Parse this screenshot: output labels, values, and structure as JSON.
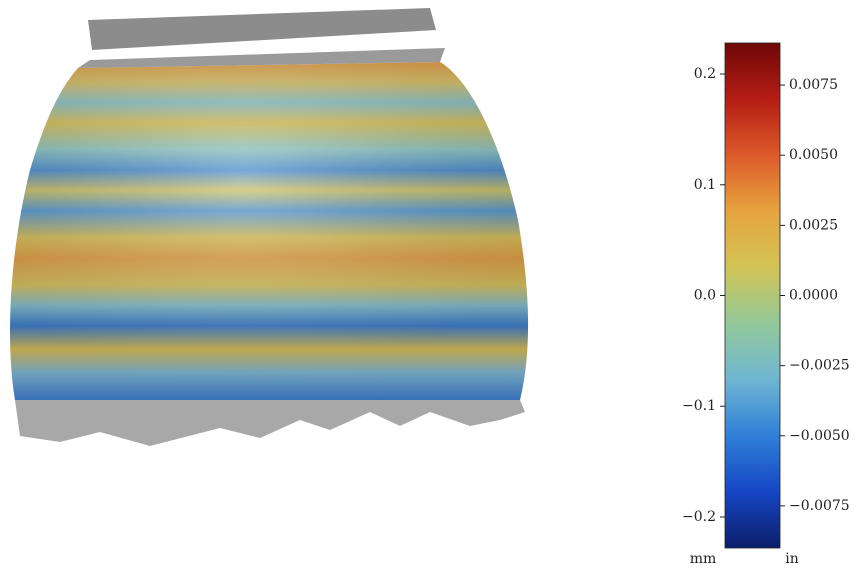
{
  "chart_data": {
    "type": "colorbar",
    "ylabel": "mm",
    "y2label": "in",
    "ylim": [
      -0.228,
      0.228
    ],
    "yticks": [
      {
        "value": -0.2,
        "label": "−0.2"
      },
      {
        "value": -0.1,
        "label": "−0.1"
      },
      {
        "value": 0,
        "label": "0.0"
      },
      0.1,
      0.2
    ],
    "y2lim": [
      -0.009,
      0.009
    ],
    "y2ticks": [
      {
        "value": -0.0075,
        "label": "−0.0075"
      },
      {
        "value": -0.005,
        "label": "−0.0050"
      },
      {
        "value": -0.0025,
        "label": "−0.0025"
      },
      {
        "value": 0,
        "label": "0.0000"
      },
      0.0025,
      {
        "value": 0.005,
        "label": "0.0050"
      },
      0.0075
    ],
    "colormap": [
      "#0b1e6b",
      "#1646c4",
      "#2f7fd8",
      "#6fb6d2",
      "#93c99a",
      "#d2c456",
      "#e7a43e",
      "#dc5a2a",
      "#b51d14",
      "#6e0707"
    ]
  }
}
